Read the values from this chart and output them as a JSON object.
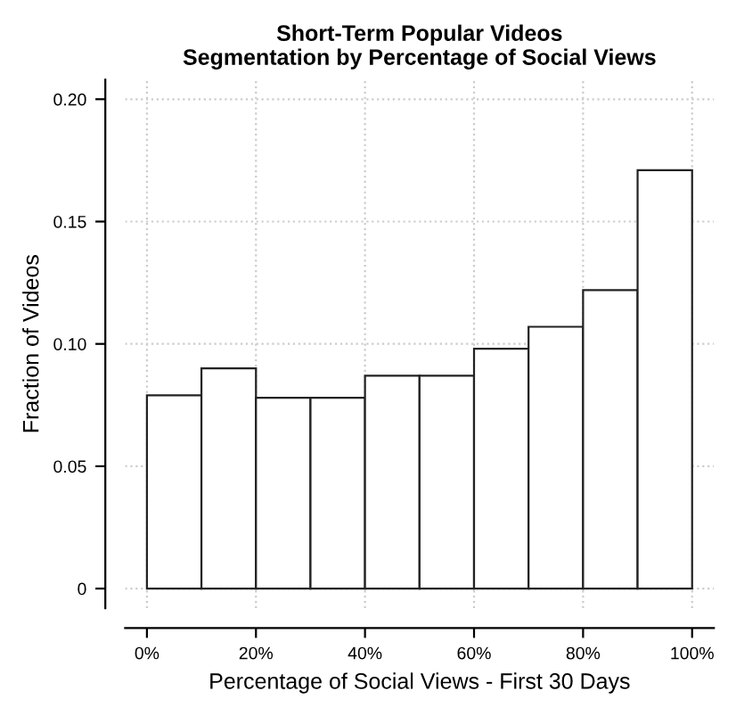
{
  "chart_data": {
    "type": "histogram",
    "title": "Short-Term Popular Videos\nSegmentation by Percentage of Social Views",
    "xlabel": "Percentage of Social Views - First 30 Days",
    "ylabel": "Fraction of Videos",
    "bins": [
      0,
      10,
      20,
      30,
      40,
      50,
      60,
      70,
      80,
      90,
      100
    ],
    "values": [
      0.079,
      0.09,
      0.078,
      0.078,
      0.087,
      0.087,
      0.098,
      0.107,
      0.122,
      0.171
    ],
    "color": "#ffffff",
    "xlim": [
      -4,
      104
    ],
    "ylim": [
      -0.008,
      0.208
    ],
    "xticks": [
      {
        "value": 0,
        "label": "0%"
      },
      {
        "value": 20,
        "label": "20%"
      },
      {
        "value": 40,
        "label": "40%"
      },
      {
        "value": 60,
        "label": "60%"
      },
      {
        "value": 80,
        "label": "80%"
      },
      {
        "value": 100,
        "label": "100%"
      }
    ],
    "yticks": [
      {
        "value": 0,
        "label": "0"
      },
      0.05,
      {
        "value": 0.1,
        "label": "0.10"
      },
      0.15,
      {
        "value": 0.2,
        "label": "0.20"
      }
    ],
    "grid": true
  }
}
